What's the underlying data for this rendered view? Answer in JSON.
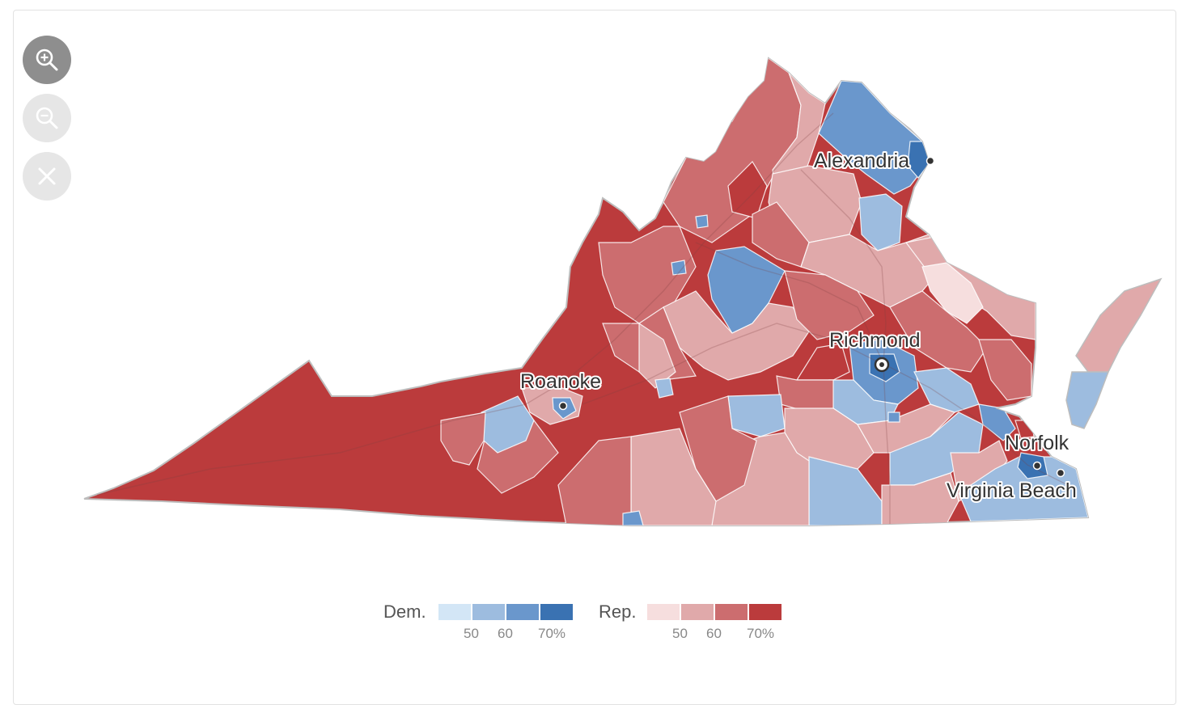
{
  "map": {
    "cities": [
      {
        "name": "Alexandria",
        "marker": "dot"
      },
      {
        "name": "Richmond",
        "marker": "capital"
      },
      {
        "name": "Roanoke",
        "marker": "dot"
      },
      {
        "name": "Norfolk",
        "marker": "dot"
      },
      {
        "name": "Virginia Beach",
        "marker": "dot"
      }
    ],
    "controls": {
      "zoom_in": "zoom-in-icon",
      "zoom_out": "zoom-out-icon",
      "reset": "close-icon"
    }
  },
  "legend": {
    "dem_label": "Dem.",
    "rep_label": "Rep.",
    "dem_colors": [
      "#d3e6f6",
      "#9dbcdf",
      "#6a97cc",
      "#3a72b2"
    ],
    "rep_colors": [
      "#f6dede",
      "#e0a9aa",
      "#cc6d6f",
      "#bb3b3c"
    ],
    "dem_ticks": [
      "50",
      "60",
      "70%"
    ],
    "rep_ticks": [
      "50",
      "60",
      "70%"
    ]
  },
  "colors": {
    "rep_strong": "#bb3b3c",
    "rep_mid": "#cc6d6f",
    "rep_light": "#e0a9aa",
    "rep_faint": "#f6dede",
    "dem_strong": "#3a72b2",
    "dem_mid": "#6a97cc",
    "dem_light": "#9dbcdf",
    "county_border": "#ffffff",
    "state_border": "#bdbdbd"
  }
}
